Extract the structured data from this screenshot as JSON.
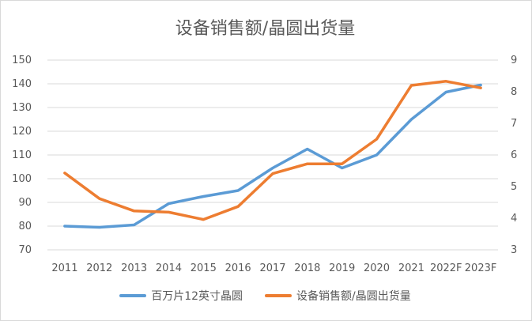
{
  "chart_data": {
    "type": "line",
    "title": "设备销售额/晶圆出货量",
    "categories": [
      "2011",
      "2012",
      "2013",
      "2014",
      "2015",
      "2016",
      "2017",
      "2018",
      "2019",
      "2020",
      "2021",
      "2022F",
      "2023F"
    ],
    "y_left": {
      "range": [
        70,
        150
      ],
      "ticks": [
        "70",
        "80",
        "90",
        "100",
        "110",
        "120",
        "130",
        "140",
        "150"
      ]
    },
    "y_right": {
      "range": [
        3,
        9
      ],
      "ticks": [
        "3",
        "4",
        "5",
        "6",
        "7",
        "8",
        "9"
      ]
    },
    "series": [
      {
        "name": "百万片12英寸晶圆",
        "axis": "left",
        "color": "#5b9bd5",
        "values": [
          80,
          79.5,
          80.5,
          89.5,
          92.5,
          95,
          104.5,
          112.5,
          104.5,
          110,
          125,
          136.5,
          139.5
        ]
      },
      {
        "name": "设备销售额/晶圆出货量",
        "axis": "right",
        "color": "#ed7d31",
        "values": [
          5.43,
          4.62,
          4.23,
          4.19,
          3.96,
          4.37,
          5.41,
          5.72,
          5.72,
          6.5,
          8.2,
          8.33,
          8.12
        ]
      }
    ],
    "grid": true,
    "legend_position": "bottom"
  }
}
